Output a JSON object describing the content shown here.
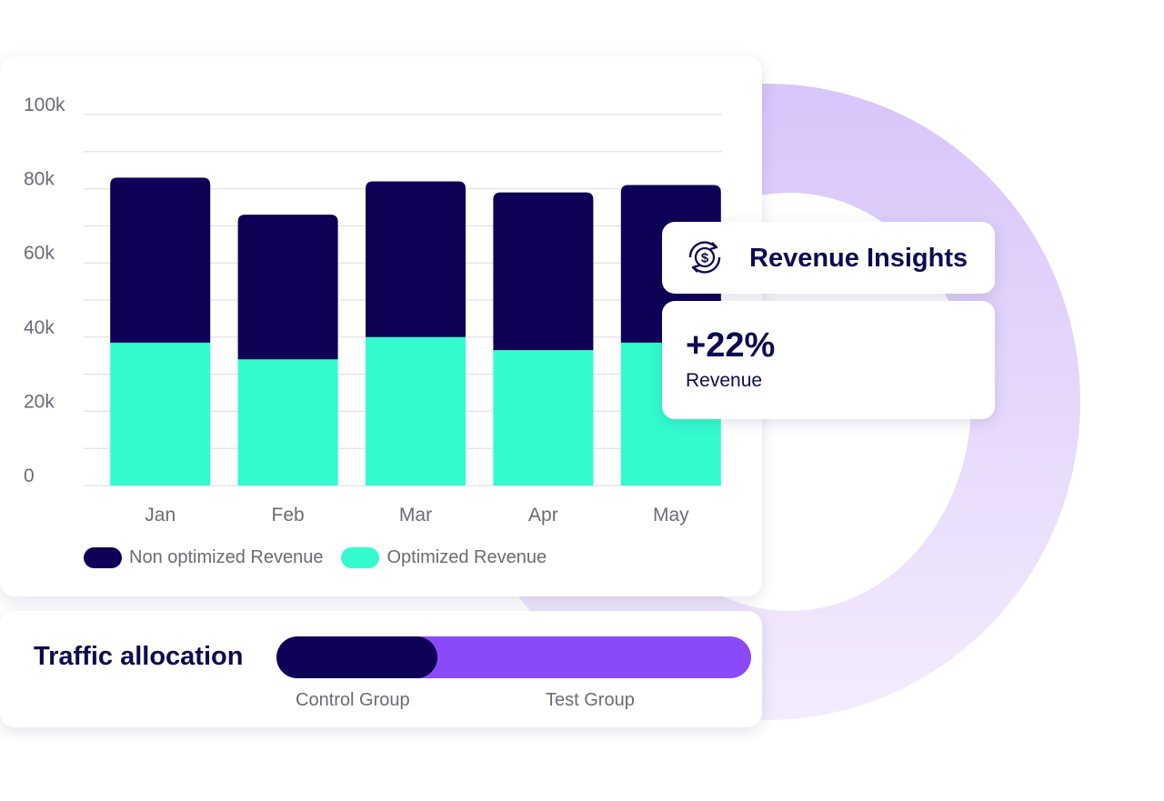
{
  "colors": {
    "non_optimized": "#0d0056",
    "optimized": "#33fbce",
    "control_group": "#0d0056",
    "test_group": "#8a4af7",
    "text_dark": "#0d0a52",
    "text_muted": "#6b6b78"
  },
  "chart_data": {
    "type": "bar",
    "stacked": true,
    "categories": [
      "Jan",
      "Feb",
      "Mar",
      "Apr",
      "May"
    ],
    "series": [
      {
        "name": "Optimized Revenue",
        "color": "#33fbce",
        "values": [
          38500,
          34000,
          40000,
          36500,
          38500
        ]
      },
      {
        "name": "Non optimized Revenue",
        "color": "#0d0056",
        "values": [
          44500,
          39000,
          42000,
          42500,
          42500
        ]
      }
    ],
    "ylim": [
      0,
      100000
    ],
    "yticks": [
      0,
      20000,
      40000,
      60000,
      80000,
      100000
    ],
    "ytick_labels": [
      "0",
      "20k",
      "40k",
      "60k",
      "80k",
      "100k"
    ],
    "grid": true,
    "legend": [
      "Non optimized Revenue",
      "Optimized Revenue"
    ],
    "legend_position": "bottom-left"
  },
  "insights": {
    "icon": "dollar-cycle-icon",
    "title": "Revenue Insights",
    "stat_value": "+22%",
    "stat_label": "Revenue"
  },
  "traffic": {
    "title": "Traffic allocation",
    "control_label": "Control Group",
    "test_label": "Test Group",
    "control_share": 0.34
  }
}
